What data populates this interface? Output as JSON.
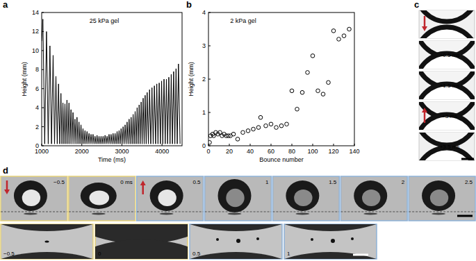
{
  "panel_labels": [
    "a",
    "b",
    "c",
    "d"
  ],
  "chart_data": [
    {
      "type": "line",
      "title": "25 kPa gel",
      "x_label": "Time (ms)",
      "y_label": "Height (mm)",
      "xlim": [
        1000,
        4500
      ],
      "ylim": [
        0,
        14
      ],
      "xticks": [
        1000,
        2000,
        3000,
        4000
      ],
      "yticks": [
        0,
        2,
        4,
        6,
        8,
        10,
        12,
        14
      ],
      "x": [
        1000,
        1030,
        1075,
        1120,
        1163,
        1205,
        1245,
        1285,
        1320,
        1355,
        1388,
        1420,
        1450,
        1480,
        1505,
        1530,
        1555,
        1580,
        1605,
        1630,
        1655,
        1680,
        1705,
        1730,
        1755,
        1780,
        1805,
        1830,
        1855,
        1880,
        1905,
        1930,
        1955,
        1980,
        2005,
        2030,
        2055,
        2080,
        2105,
        2130,
        2155,
        2180,
        2205,
        2230,
        2255,
        2280,
        2305,
        2330,
        2355,
        2380,
        2405,
        2430,
        2455,
        2480,
        2505,
        2530,
        2555,
        2580,
        2605,
        2630,
        2655,
        2680,
        2705,
        2730,
        2755,
        2780,
        2805,
        2830,
        2855,
        2880,
        2905,
        2930,
        2955,
        2980,
        3005,
        3030,
        3055,
        3080,
        3105,
        3130,
        3155,
        3180,
        3205,
        3230,
        3255,
        3280,
        3305,
        3330,
        3355,
        3380,
        3405,
        3430,
        3455,
        3480,
        3505,
        3530,
        3555,
        3580,
        3605,
        3630,
        3660,
        3690,
        3720,
        3750,
        3780,
        3810,
        3840,
        3870,
        3900,
        3930,
        3960,
        3990,
        4020,
        4050,
        4080,
        4110,
        4140,
        4170,
        4200,
        4230,
        4260,
        4290,
        4320,
        4350,
        4380,
        4410,
        4450
      ],
      "series": [
        {
          "color": "#000000",
          "line_style": "solid",
          "values": [
            11.0,
            13.3,
            0.2,
            12.0,
            0.2,
            10.5,
            0.2,
            9.5,
            0.2,
            7.3,
            0.2,
            6.5,
            0.2,
            5.5,
            0.2,
            4.5,
            0.2,
            4.4,
            0.2,
            4.8,
            0.2,
            4.5,
            0.2,
            3.8,
            0.2,
            3.5,
            0.2,
            2.8,
            0.2,
            3.0,
            0.2,
            2.5,
            0.2,
            2.2,
            0.2,
            1.8,
            0.2,
            1.6,
            0.2,
            1.5,
            0.2,
            1.3,
            0.2,
            1.2,
            0.2,
            1.2,
            0.2,
            1.0,
            0.2,
            1.1,
            0.2,
            1.0,
            0.2,
            1.0,
            0.2,
            1.0,
            0.2,
            1.1,
            0.2,
            1.0,
            0.2,
            1.2,
            0.2,
            1.2,
            0.2,
            1.3,
            0.2,
            1.3,
            0.2,
            1.5,
            0.2,
            1.6,
            0.2,
            1.8,
            0.2,
            2.0,
            0.2,
            2.2,
            0.2,
            2.5,
            0.2,
            2.8,
            0.2,
            3.0,
            0.2,
            3.3,
            0.2,
            3.6,
            0.2,
            4.0,
            0.2,
            4.3,
            0.2,
            4.6,
            0.2,
            5.0,
            0.2,
            5.3,
            0.2,
            5.6,
            0.2,
            5.9,
            0.2,
            6.1,
            0.2,
            6.3,
            0.2,
            6.5,
            0.2,
            6.6,
            0.2,
            6.8,
            0.2,
            7.0,
            0.2,
            7.0,
            0.2,
            7.2,
            0.2,
            7.5,
            0.2,
            7.8,
            0.2,
            8.1,
            0.2,
            8.6,
            0.2
          ]
        }
      ]
    },
    {
      "type": "scatter",
      "title": "2 kPa gel",
      "x_label": "Bounce number",
      "y_label": "Height (mm)",
      "xlim": [
        0,
        140
      ],
      "ylim": [
        0,
        4
      ],
      "xticks": [
        0,
        20,
        40,
        60,
        80,
        100,
        120,
        140
      ],
      "yticks": [
        0,
        1,
        2,
        3,
        4
      ],
      "x": [
        1,
        2,
        4,
        5,
        7,
        9,
        11,
        13,
        15,
        17,
        19,
        21,
        24,
        28,
        33,
        38,
        43,
        48,
        50,
        55,
        60,
        65,
        70,
        75,
        80,
        85,
        90,
        95,
        100,
        105,
        110,
        115,
        120,
        125,
        130,
        135
      ],
      "series": [
        {
          "color": "#000000",
          "marker": "circle",
          "values": [
            0.1,
            0.3,
            0.35,
            0.3,
            0.4,
            0.35,
            0.4,
            0.3,
            0.35,
            0.3,
            0.3,
            0.3,
            0.35,
            0.2,
            0.4,
            0.45,
            0.5,
            0.55,
            0.85,
            0.6,
            0.65,
            0.55,
            0.6,
            0.65,
            1.65,
            1.1,
            1.6,
            2.2,
            2.7,
            1.65,
            1.55,
            1.9,
            3.45,
            3.2,
            3.3,
            3.5
          ]
        }
      ]
    }
  ],
  "panel_c": {
    "frame_labels": [
      "+0.5 ms",
      "+1.5 ms",
      "+3 ms",
      "+3.5 ms"
    ]
  },
  "panel_d": {
    "top_labels": [
      "−0.5",
      "0 ms",
      "0.5",
      "1",
      "1.5",
      "2",
      "2.5"
    ],
    "bottom_labels": [
      "−0.5",
      "0",
      "0.5",
      "1"
    ]
  }
}
